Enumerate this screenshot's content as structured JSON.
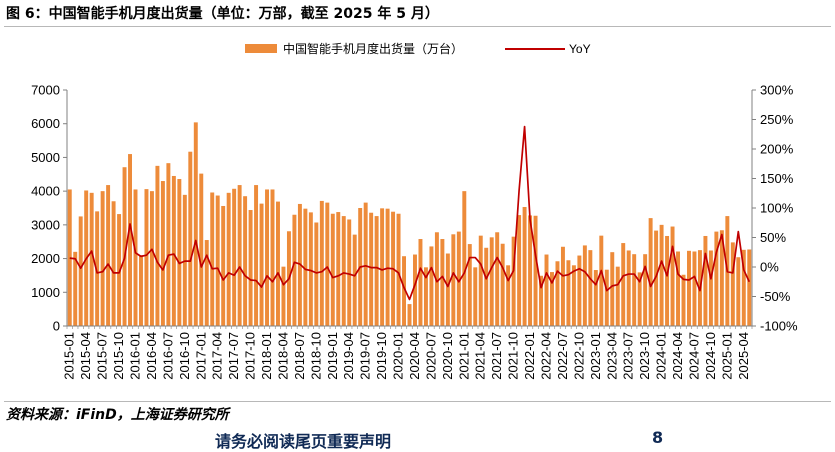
{
  "figure": {
    "title": "图 6：中国智能手机月度出货量（单位：万部，截至 2025 年 5 月）",
    "source": "资料来源：iFinD，上海证券研究所",
    "footer_text": "请务必阅读尾页重要声明",
    "footer_page": "8"
  },
  "colors": {
    "bar": "#ED8B3A",
    "line": "#C00000",
    "axis": "#808080",
    "text": "#000000"
  },
  "chart_data": {
    "type": "bar",
    "title": "",
    "xlabel": "",
    "ylabel": "",
    "y2label": "",
    "ylim": [
      0,
      7000
    ],
    "y2lim": [
      -100,
      300
    ],
    "yticks": [
      0,
      1000,
      2000,
      3000,
      4000,
      5000,
      6000,
      7000
    ],
    "y2ticks": [
      "-100%",
      "-50%",
      "0%",
      "50%",
      "100%",
      "150%",
      "200%",
      "250%",
      "300%"
    ],
    "y2tick_values": [
      -100,
      -50,
      0,
      50,
      100,
      150,
      200,
      250,
      300
    ],
    "legend_position": "top",
    "tick_labels": [
      "2015-01",
      "2015-04",
      "2015-07",
      "2015-10",
      "2016-01",
      "2016-04",
      "2016-07",
      "2016-10",
      "2017-01",
      "2017-04",
      "2017-07",
      "2017-10",
      "2018-01",
      "2018-04",
      "2018-07",
      "2018-10",
      "2019-01",
      "2019-04",
      "2019-07",
      "2019-10",
      "2020-01",
      "2020-04",
      "2020-07",
      "2020-10",
      "2021-01",
      "2021-04",
      "2021-07",
      "2021-10",
      "2022-01",
      "2022-04",
      "2022-07",
      "2022-10",
      "2023-01",
      "2023-04",
      "2023-07",
      "2023-10",
      "2024-01",
      "2024-04",
      "2024-07",
      "2024-10",
      "2025-01",
      "2025-04"
    ],
    "tick_every": 3,
    "series": [
      {
        "name": "中国智能手机月度出货量（万台）",
        "type": "bar",
        "axis": "left",
        "values": [
          4050,
          2200,
          3250,
          4020,
          3950,
          3400,
          4000,
          4180,
          3700,
          3320,
          4710,
          5100,
          4050,
          2100,
          4060,
          4000,
          4750,
          4300,
          4830,
          4450,
          4360,
          3890,
          5170,
          6040,
          4520,
          2550,
          3960,
          3870,
          3560,
          3950,
          4070,
          4180,
          3850,
          3440,
          4180,
          3630,
          4050,
          4050,
          3690,
          1760,
          2810,
          3300,
          3620,
          3480,
          3370,
          3070,
          3710,
          3660,
          3330,
          3380,
          3260,
          3160,
          2710,
          3500,
          3660,
          3360,
          3260,
          3490,
          3480,
          3390,
          3330,
          2070,
          650,
          2120,
          2580,
          1740,
          2360,
          2780,
          2580,
          2150,
          2720,
          2800,
          4000,
          2430,
          1740,
          2680,
          2320,
          2630,
          2780,
          2440,
          1800,
          2650,
          3290,
          3530,
          3280,
          3270,
          1490,
          2120,
          1600,
          1920,
          2350,
          1950,
          1800,
          2090,
          2390,
          2250,
          1660,
          2680,
          1670,
          2190,
          1760,
          2460,
          2240,
          2130,
          1590,
          2130,
          3200,
          2830,
          3000,
          2670,
          2950,
          2210,
          1520,
          2230,
          2210,
          2250,
          2670,
          2240,
          2800,
          2840,
          3260,
          2480,
          2040,
          2260,
          2270
        ]
      },
      {
        "name": "YoY",
        "type": "line",
        "axis": "right",
        "values": [
          15,
          14,
          -2,
          14,
          27,
          -10,
          -8,
          5,
          -10,
          -10,
          15,
          73,
          24,
          18,
          20,
          30,
          8,
          -5,
          20,
          22,
          6,
          10,
          10,
          45,
          0,
          20,
          -3,
          -2,
          -22,
          -10,
          -14,
          0,
          -15,
          -22,
          -23,
          -34,
          -15,
          -25,
          -10,
          -30,
          -20,
          8,
          5,
          -4,
          -6,
          -10,
          -8,
          0,
          -18,
          -15,
          -10,
          -12,
          -15,
          0,
          2,
          -1,
          -1,
          -5,
          -2,
          -3,
          -10,
          -35,
          -55,
          -30,
          -2,
          -18,
          -1,
          -25,
          -16,
          -33,
          -10,
          -25,
          -10,
          16,
          16,
          5,
          -20,
          -1,
          16,
          -1,
          -23,
          -6,
          130,
          238,
          80,
          20,
          -35,
          -10,
          -27,
          -7,
          -15,
          -13,
          -7,
          -3,
          -8,
          -20,
          -30,
          -6,
          -40,
          -32,
          -30,
          -15,
          -12,
          -12,
          -25,
          1,
          -33,
          -16,
          10,
          -15,
          35,
          -12,
          -21,
          -22,
          -16,
          -40,
          23,
          -20,
          25,
          55,
          -8,
          -10,
          60,
          -5,
          -25
        ]
      }
    ]
  }
}
